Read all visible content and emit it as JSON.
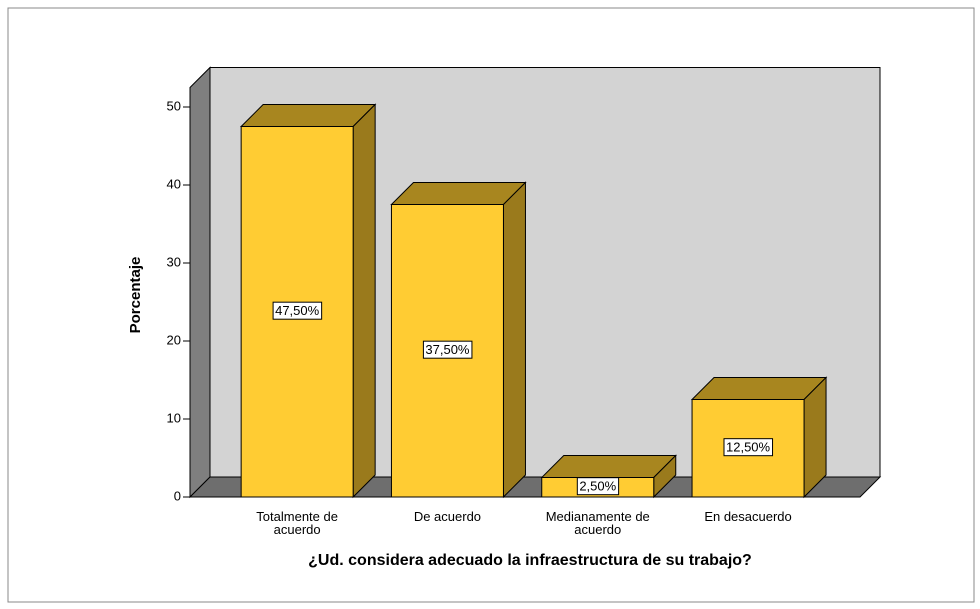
{
  "chart_data": {
    "type": "bar3d",
    "categories": [
      "Totalmente de acuerdo",
      "De acuerdo",
      "Medianamente de acuerdo",
      "En desacuerdo"
    ],
    "values": [
      47.5,
      37.5,
      2.5,
      12.5
    ],
    "value_labels": [
      "47,50%",
      "37,50%",
      "2,50%",
      "12,50%"
    ],
    "color": "#ffcc33",
    "ylabel": "Porcentaje",
    "xlabel": "¿Ud. considera adecuado la infraestructura de su trabajo?",
    "ylim": [
      0,
      52.5
    ],
    "yticks": [
      0,
      10,
      20,
      30,
      40,
      50
    ],
    "grid": false
  }
}
